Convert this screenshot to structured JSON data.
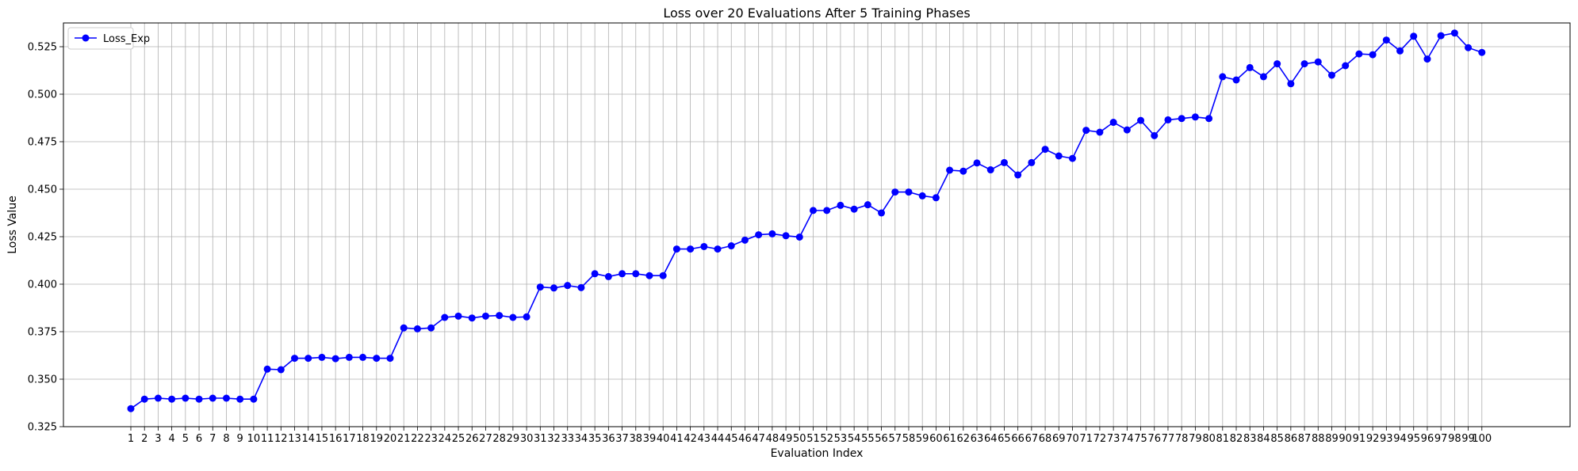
{
  "chart_data": {
    "type": "line",
    "title": "Loss over 20 Evaluations After 5 Training Phases",
    "xlabel": "Evaluation Index",
    "ylabel": "Loss Value",
    "ylim": [
      0.325,
      0.5375
    ],
    "yticks": [
      "0.325",
      "0.350",
      "0.375",
      "0.400",
      "0.425",
      "0.450",
      "0.475",
      "0.500",
      "0.525"
    ],
    "xtick_labels": [
      "1",
      "2",
      "3",
      "4",
      "5",
      "6",
      "7",
      "8",
      "9",
      "10",
      "11",
      "12",
      "13",
      "14",
      "15",
      "16",
      "17",
      "18",
      "19",
      "20",
      "21",
      "22",
      "23",
      "24",
      "25",
      "26",
      "27",
      "28",
      "29",
      "30",
      "31",
      "32",
      "33",
      "34",
      "35",
      "36",
      "37",
      "38",
      "39",
      "40",
      "41",
      "42",
      "43",
      "44",
      "45",
      "46",
      "47",
      "48",
      "49",
      "50",
      "51",
      "52",
      "53",
      "54",
      "55",
      "56",
      "57",
      "58",
      "59",
      "60",
      "61",
      "62",
      "63",
      "64",
      "65",
      "66",
      "67",
      "68",
      "69",
      "70",
      "71",
      "72",
      "73",
      "74",
      "75",
      "76",
      "77",
      "78",
      "79",
      "80",
      "81",
      "82",
      "83",
      "84",
      "85",
      "86",
      "87",
      "88",
      "89",
      "90",
      "91",
      "92",
      "93",
      "94",
      "95",
      "96",
      "97",
      "98",
      "99",
      "100"
    ],
    "grid": true,
    "legend_position": "top-left",
    "series": [
      {
        "name": "Loss_Exp",
        "color": "#0000ff",
        "marker": "circle",
        "values": [
          0.3345,
          0.3395,
          0.34,
          0.3395,
          0.34,
          0.3395,
          0.34,
          0.34,
          0.3395,
          0.3395,
          0.3553,
          0.355,
          0.361,
          0.361,
          0.3615,
          0.3608,
          0.3615,
          0.3615,
          0.361,
          0.361,
          0.377,
          0.3765,
          0.377,
          0.3825,
          0.3832,
          0.3822,
          0.3832,
          0.3835,
          0.3825,
          0.3828,
          0.3985,
          0.398,
          0.3993,
          0.3982,
          0.4055,
          0.404,
          0.4055,
          0.4055,
          0.4045,
          0.4045,
          0.4185,
          0.4185,
          0.4198,
          0.4185,
          0.4202,
          0.4232,
          0.426,
          0.4265,
          0.4255,
          0.4248,
          0.4388,
          0.4388,
          0.4415,
          0.4395,
          0.4418,
          0.4375,
          0.4485,
          0.4485,
          0.4465,
          0.4455,
          0.46,
          0.4595,
          0.4638,
          0.4602,
          0.464,
          0.4575,
          0.464,
          0.471,
          0.4675,
          0.4662,
          0.481,
          0.48,
          0.4852,
          0.4812,
          0.4862,
          0.4782,
          0.4865,
          0.4872,
          0.488,
          0.4872,
          0.5092,
          0.5075,
          0.514,
          0.5092,
          0.516,
          0.5055,
          0.516,
          0.517,
          0.51,
          0.515,
          0.5212,
          0.5208,
          0.5285,
          0.5228,
          0.5305,
          0.5185,
          0.5308,
          0.5322,
          0.5245,
          0.522
        ]
      }
    ]
  }
}
